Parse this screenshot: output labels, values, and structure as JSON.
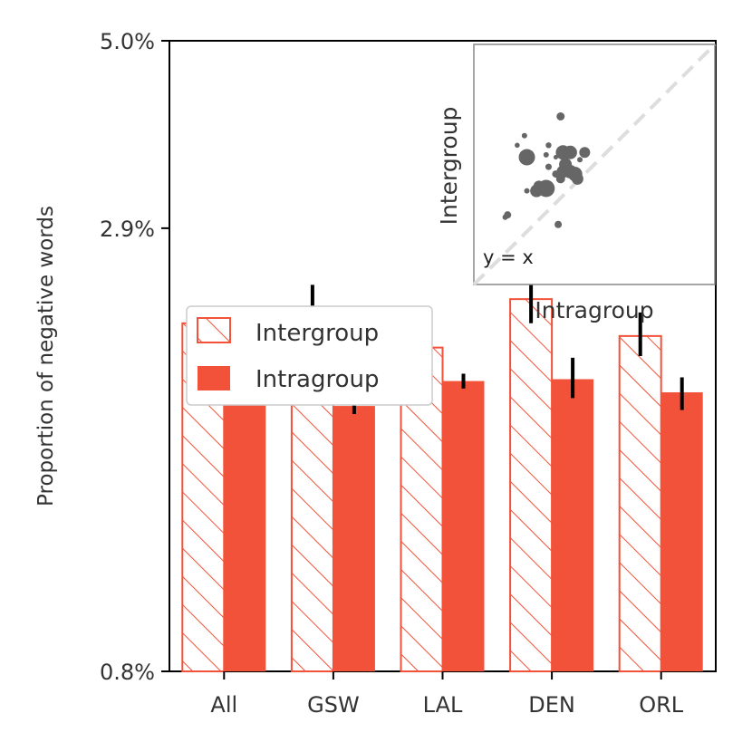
{
  "chart_data": {
    "type": "bar",
    "ylabel": "Proportion of negative words",
    "xlabel": "",
    "y_scale": "log",
    "ylim": [
      0.8,
      5.0
    ],
    "y_ticks": [
      0.8,
      2.9,
      5.0
    ],
    "y_tick_labels": [
      "0.8%",
      "2.9%",
      "5.0%"
    ],
    "categories": [
      "All",
      "GSW",
      "LAL",
      "DEN",
      "ORL"
    ],
    "colors": {
      "bar": "#f25239",
      "errorbar": "#000000",
      "inset_point": "#666666",
      "diagonal": "#dddddd"
    },
    "series": [
      {
        "name": "Intergroup",
        "style": "hatched",
        "values": [
          2.2,
          2.3,
          2.05,
          2.36,
          2.12
        ],
        "err_low": [
          2.18,
          2.15,
          2.0,
          2.2,
          2.0
        ],
        "err_high": [
          2.23,
          2.46,
          2.11,
          2.53,
          2.27
        ]
      },
      {
        "name": "Intragroup",
        "style": "solid",
        "values": [
          1.9,
          1.73,
          1.86,
          1.87,
          1.8
        ],
        "err_low": [
          1.89,
          1.69,
          1.82,
          1.77,
          1.71
        ],
        "err_high": [
          1.91,
          1.78,
          1.9,
          1.99,
          1.88
        ]
      }
    ],
    "legend": {
      "position": "center-left",
      "entries": [
        "Intergroup",
        "Intragroup"
      ]
    },
    "inset": {
      "type": "scatter",
      "xlabel": "Intragroup",
      "ylabel": "Intergroup",
      "annotation": "y = x",
      "xlim": [
        0,
        1
      ],
      "ylim": [
        0,
        1
      ],
      "points": [
        {
          "x": 0.36,
          "y": 0.7,
          "s": 4.5
        },
        {
          "x": 0.21,
          "y": 0.62,
          "s": 3.0
        },
        {
          "x": 0.18,
          "y": 0.58,
          "s": 2.8
        },
        {
          "x": 0.22,
          "y": 0.53,
          "s": 9.0
        },
        {
          "x": 0.31,
          "y": 0.58,
          "s": 3.2
        },
        {
          "x": 0.3,
          "y": 0.54,
          "s": 3.0
        },
        {
          "x": 0.34,
          "y": 0.53,
          "s": 2.5
        },
        {
          "x": 0.37,
          "y": 0.55,
          "s": 8.0
        },
        {
          "x": 0.4,
          "y": 0.55,
          "s": 7.5
        },
        {
          "x": 0.38,
          "y": 0.5,
          "s": 7.0
        },
        {
          "x": 0.37,
          "y": 0.47,
          "s": 7.0
        },
        {
          "x": 0.4,
          "y": 0.47,
          "s": 7.5
        },
        {
          "x": 0.42,
          "y": 0.46,
          "s": 8.0
        },
        {
          "x": 0.43,
          "y": 0.44,
          "s": 6.5
        },
        {
          "x": 0.36,
          "y": 0.44,
          "s": 5.0
        },
        {
          "x": 0.34,
          "y": 0.46,
          "s": 4.0
        },
        {
          "x": 0.46,
          "y": 0.55,
          "s": 6.0
        },
        {
          "x": 0.44,
          "y": 0.52,
          "s": 3.0
        },
        {
          "x": 0.31,
          "y": 0.49,
          "s": 3.5
        },
        {
          "x": 0.3,
          "y": 0.4,
          "s": 9.5
        },
        {
          "x": 0.26,
          "y": 0.39,
          "s": 7.0
        },
        {
          "x": 0.27,
          "y": 0.41,
          "s": 6.0
        },
        {
          "x": 0.22,
          "y": 0.39,
          "s": 3.0
        },
        {
          "x": 0.14,
          "y": 0.29,
          "s": 4.0
        },
        {
          "x": 0.13,
          "y": 0.28,
          "s": 3.0
        },
        {
          "x": 0.35,
          "y": 0.25,
          "s": 4.0
        }
      ]
    }
  }
}
